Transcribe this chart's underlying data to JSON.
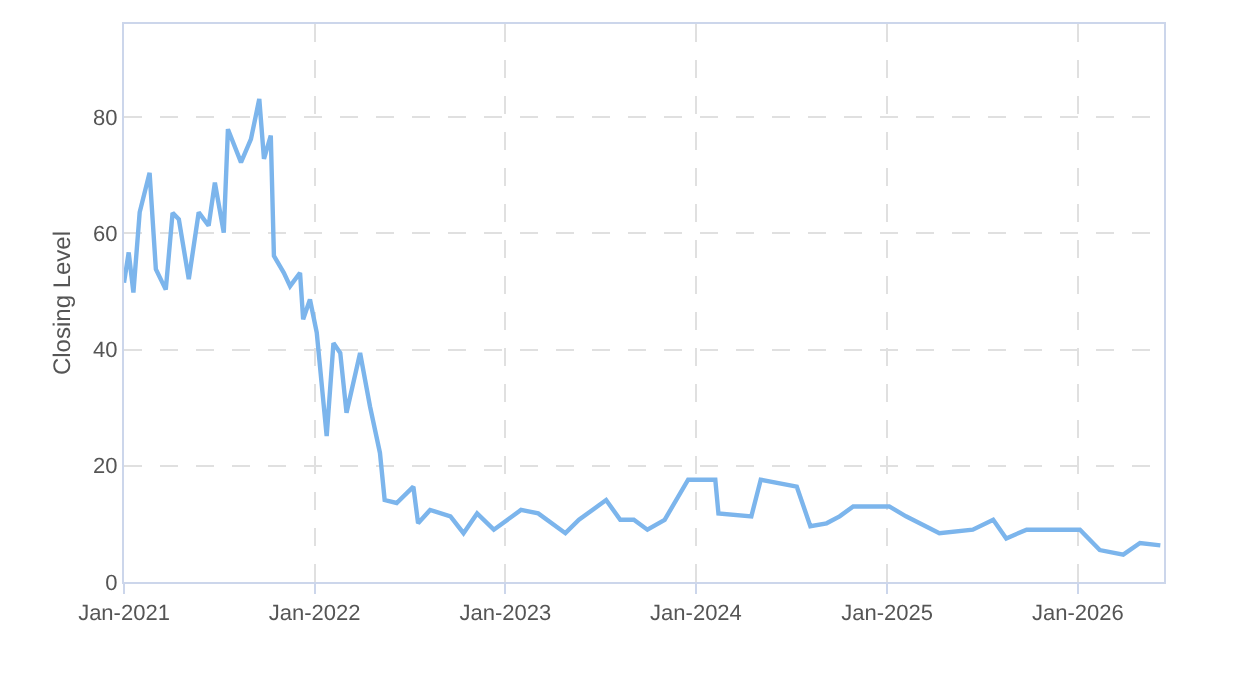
{
  "chart_data": {
    "type": "line",
    "ylabel": "Closing Level",
    "x": [
      "2021-01-01",
      "2021-01-10",
      "2021-01-19",
      "2021-01-31",
      "2021-02-19",
      "2021-03-03",
      "2021-03-22",
      "2021-04-04",
      "2021-04-16",
      "2021-05-05",
      "2021-05-24",
      "2021-06-12",
      "2021-06-24",
      "2021-07-11",
      "2021-07-19",
      "2021-08-13",
      "2021-09-01",
      "2021-09-17",
      "2021-09-26",
      "2021-10-09",
      "2021-10-15",
      "2021-11-03",
      "2021-11-15",
      "2021-12-04",
      "2021-12-10",
      "2021-12-23",
      "2022-01-05",
      "2022-01-24",
      "2022-02-06",
      "2022-02-19",
      "2022-03-03",
      "2022-03-29",
      "2022-04-17",
      "2022-05-06",
      "2022-05-15",
      "2022-06-07",
      "2022-07-09",
      "2022-07-18",
      "2022-08-10",
      "2022-09-18",
      "2022-10-13",
      "2022-11-08",
      "2022-12-10",
      "2023-01-31",
      "2023-03-05",
      "2023-04-26",
      "2023-05-22",
      "2023-07-13",
      "2023-08-09",
      "2023-09-04",
      "2023-09-30",
      "2023-11-02",
      "2023-12-17",
      "2024-02-07",
      "2024-02-13",
      "2024-04-16",
      "2024-05-04",
      "2024-07-12",
      "2024-08-07",
      "2024-09-07",
      "2024-10-02",
      "2024-10-28",
      "2024-12-04",
      "2025-01-05",
      "2025-02-06",
      "2025-04-11",
      "2025-06-14",
      "2025-07-23",
      "2025-08-17",
      "2025-09-25",
      "2025-11-15",
      "2026-01-05",
      "2026-02-12",
      "2026-03-29",
      "2026-04-30",
      "2026-06-08"
    ],
    "series": [
      {
        "color": "#7cb5ec",
        "values": [
          51.5,
          56.7,
          49.8,
          63.6,
          70.4,
          53.8,
          50.3,
          63.5,
          62.4,
          52.1,
          63.6,
          61.3,
          68.7,
          60.1,
          77.9,
          72.2,
          76.2,
          83.1,
          72.8,
          76.8,
          56.1,
          53.2,
          50.9,
          53.2,
          45.2,
          48.6,
          42.9,
          25.1,
          41.1,
          39.4,
          29.1,
          39.4,
          30.2,
          22.2,
          14.1,
          13.6,
          16.4,
          10.1,
          12.4,
          11.3,
          8.4,
          11.8,
          9.0,
          12.4,
          11.8,
          8.4,
          10.7,
          14.1,
          10.7,
          10.7,
          9.0,
          10.7,
          17.6,
          17.6,
          11.8,
          11.3,
          17.6,
          16.4,
          9.6,
          10.1,
          11.3,
          13.0,
          13.0,
          13.0,
          11.3,
          8.4,
          9.0,
          10.7,
          7.5,
          9.0,
          9.0,
          9.0,
          5.5,
          4.7,
          6.7,
          6.3
        ]
      }
    ],
    "xlim": [
      "2021-01-01",
      "2026-06-15"
    ],
    "xticks": [
      {
        "value": "2021-01-01",
        "label": "Jan-2021"
      },
      {
        "value": "2022-01-01",
        "label": "Jan-2022"
      },
      {
        "value": "2023-01-01",
        "label": "Jan-2023"
      },
      {
        "value": "2024-01-01",
        "label": "Jan-2024"
      },
      {
        "value": "2025-01-01",
        "label": "Jan-2025"
      },
      {
        "value": "2026-01-01",
        "label": "Jan-2026"
      }
    ],
    "ylim": [
      0,
      96
    ],
    "yticks": [
      0,
      20,
      40,
      60,
      80
    ],
    "grid": true,
    "marker": "none",
    "line_style": "solid"
  }
}
